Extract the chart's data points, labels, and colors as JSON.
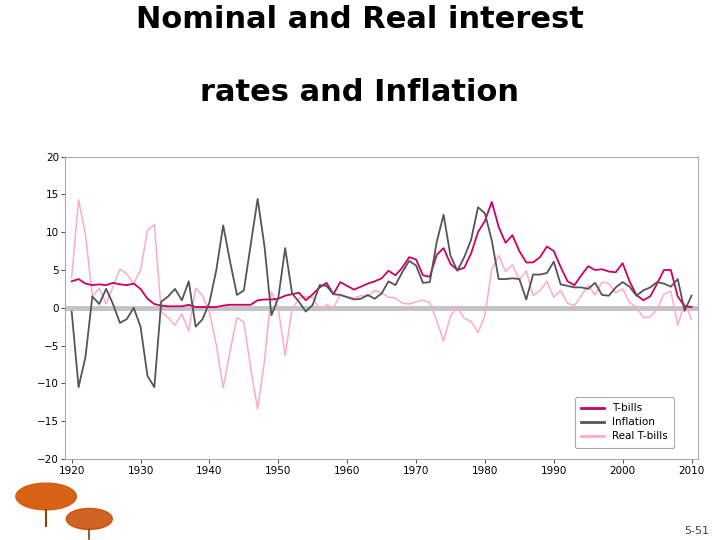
{
  "title_line1": "Nominal and Real interest",
  "title_line2": "rates and Inflation",
  "title_fontsize": 22,
  "title_fontweight": "bold",
  "xlim": [
    1919,
    2011
  ],
  "ylim": [
    -20,
    20
  ],
  "xticks": [
    1920,
    1930,
    1940,
    1950,
    1960,
    1970,
    1980,
    1990,
    2000,
    2010
  ],
  "yticks": [
    -20,
    -15,
    -10,
    -5,
    0,
    5,
    10,
    15,
    20
  ],
  "years": [
    1920,
    1921,
    1922,
    1923,
    1924,
    1925,
    1926,
    1927,
    1928,
    1929,
    1930,
    1931,
    1932,
    1933,
    1934,
    1935,
    1936,
    1937,
    1938,
    1939,
    1940,
    1941,
    1942,
    1943,
    1944,
    1945,
    1946,
    1947,
    1948,
    1949,
    1950,
    1951,
    1952,
    1953,
    1954,
    1955,
    1956,
    1957,
    1958,
    1959,
    1960,
    1961,
    1962,
    1963,
    1964,
    1965,
    1966,
    1967,
    1968,
    1969,
    1970,
    1971,
    1972,
    1973,
    1974,
    1975,
    1976,
    1977,
    1978,
    1979,
    1980,
    1981,
    1982,
    1983,
    1984,
    1985,
    1986,
    1987,
    1988,
    1989,
    1990,
    1991,
    1992,
    1993,
    1994,
    1995,
    1996,
    1997,
    1998,
    1999,
    2000,
    2001,
    2002,
    2003,
    2004,
    2005,
    2006,
    2007,
    2008,
    2009,
    2010
  ],
  "tbills": [
    3.5,
    3.8,
    3.2,
    3.0,
    3.1,
    3.0,
    3.3,
    3.1,
    3.0,
    3.2,
    2.5,
    1.2,
    0.5,
    0.3,
    0.2,
    0.2,
    0.2,
    0.4,
    0.1,
    0.1,
    0.1,
    0.1,
    0.3,
    0.4,
    0.4,
    0.4,
    0.4,
    1.0,
    1.1,
    1.1,
    1.2,
    1.6,
    1.8,
    2.0,
    1.0,
    1.8,
    2.7,
    3.3,
    1.8,
    3.4,
    2.9,
    2.4,
    2.8,
    3.2,
    3.5,
    3.9,
    4.9,
    4.3,
    5.3,
    6.7,
    6.4,
    4.3,
    4.1,
    7.0,
    7.9,
    5.8,
    5.0,
    5.3,
    7.2,
    10.0,
    11.5,
    14.0,
    10.7,
    8.6,
    9.6,
    7.5,
    6.0,
    6.0,
    6.7,
    8.1,
    7.5,
    5.4,
    3.5,
    3.0,
    4.3,
    5.5,
    5.0,
    5.1,
    4.8,
    4.7,
    5.9,
    3.5,
    1.7,
    1.0,
    1.5,
    3.2,
    5.0,
    5.0,
    1.5,
    0.2,
    0.1
  ],
  "inflation": [
    -0.5,
    -10.5,
    -6.5,
    1.5,
    0.5,
    2.5,
    0.5,
    -2.0,
    -1.5,
    0.0,
    -2.5,
    -9.0,
    -10.5,
    0.8,
    1.5,
    2.5,
    1.0,
    3.5,
    -2.5,
    -1.5,
    0.7,
    5.0,
    10.9,
    6.1,
    1.7,
    2.3,
    8.4,
    14.4,
    8.1,
    -1.0,
    1.3,
    7.9,
    1.9,
    0.8,
    -0.5,
    0.4,
    3.0,
    2.9,
    1.8,
    1.7,
    1.4,
    1.1,
    1.2,
    1.7,
    1.2,
    1.9,
    3.5,
    3.0,
    4.7,
    6.2,
    5.6,
    3.3,
    3.4,
    8.7,
    12.3,
    6.9,
    4.9,
    6.7,
    9.0,
    13.3,
    12.5,
    8.9,
    3.8,
    3.8,
    3.9,
    3.8,
    1.1,
    4.4,
    4.4,
    4.6,
    6.1,
    3.1,
    2.9,
    2.7,
    2.7,
    2.5,
    3.3,
    1.7,
    1.6,
    2.7,
    3.4,
    2.8,
    1.6,
    2.3,
    2.7,
    3.4,
    3.2,
    2.8,
    3.8,
    -0.4,
    1.6
  ],
  "real_tbills": [
    4.0,
    14.3,
    9.7,
    1.5,
    2.6,
    0.5,
    2.8,
    5.1,
    4.5,
    3.2,
    5.0,
    10.2,
    11.0,
    -0.5,
    -1.3,
    -2.3,
    -0.8,
    -3.1,
    2.6,
    1.6,
    -0.6,
    -4.9,
    -10.6,
    -5.7,
    -1.3,
    -1.9,
    -8.0,
    -13.4,
    -7.0,
    2.1,
    -0.1,
    -6.3,
    -0.1,
    1.2,
    1.5,
    1.4,
    -0.3,
    0.4,
    0.0,
    1.7,
    1.5,
    1.3,
    1.6,
    1.5,
    2.3,
    2.0,
    1.4,
    1.3,
    0.6,
    0.5,
    0.8,
    1.0,
    0.7,
    -1.7,
    -4.4,
    -1.1,
    0.1,
    -1.4,
    -1.8,
    -3.3,
    -1.0,
    5.1,
    6.9,
    4.8,
    5.7,
    3.7,
    4.9,
    1.6,
    2.3,
    3.5,
    1.4,
    2.3,
    0.6,
    0.3,
    1.6,
    3.0,
    1.7,
    3.4,
    3.2,
    2.0,
    2.5,
    0.7,
    0.1,
    -1.3,
    -1.2,
    -0.2,
    1.8,
    2.2,
    -2.3,
    0.6,
    -1.5
  ],
  "tbills_color": "#cc0066",
  "inflation_color": "#555555",
  "real_tbills_color": "#ffaacc",
  "zero_line_color": "#aaaaaa",
  "bg_color": "#ffffff",
  "plot_bg_color": "#ffffff",
  "legend_labels": [
    "T-bills",
    "Inflation",
    "Real T-bills"
  ],
  "watermark_text": "5-51",
  "figsize": [
    7.2,
    5.4
  ],
  "dpi": 100
}
